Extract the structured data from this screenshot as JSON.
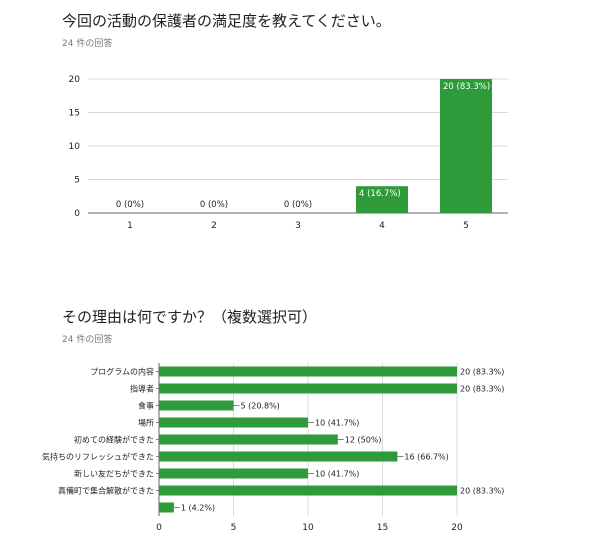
{
  "charts": [
    {
      "question": "今回の活動の保護者の満足度を教えてください。",
      "responses": "24 件の回答"
    },
    {
      "question": "その理由は何ですか？（複数選択可）",
      "responses": "24 件の回答"
    }
  ],
  "colors": {
    "bar": "#2e9a3a",
    "grid": "#d9d9d9",
    "axis": "#666666",
    "text": "#212121"
  },
  "chart_data": [
    {
      "type": "bar",
      "orientation": "vertical",
      "categories": [
        "1",
        "2",
        "3",
        "4",
        "5"
      ],
      "values": [
        0,
        0,
        0,
        4,
        20
      ],
      "data_labels": [
        "0 (0%)",
        "0 (0%)",
        "0 (0%)",
        "4 (16.7%)",
        "20 (83.3%)"
      ],
      "yticks": [
        "0",
        "5",
        "10",
        "15",
        "20"
      ],
      "ylim": [
        0,
        20
      ],
      "grid": true
    },
    {
      "type": "bar",
      "orientation": "horizontal",
      "categories": [
        "プログラムの内容",
        "指導者",
        "食事",
        "場所",
        "初めての経験ができた",
        "気持ちのリフレッシュができた",
        "新しい友だちができた",
        "真備町で集合解散ができた",
        ""
      ],
      "values": [
        20,
        20,
        5,
        10,
        12,
        16,
        10,
        20,
        1
      ],
      "data_labels": [
        "20 (83.3%)",
        "20 (83.3%)",
        "5 (20.8%)",
        "10 (41.7%)",
        "12 (50%)",
        "16 (66.7%)",
        "10 (41.7%)",
        "20 (83.3%)",
        "1 (4.2%)"
      ],
      "xticks": [
        "0",
        "5",
        "10",
        "15",
        "20"
      ],
      "xlim": [
        0,
        20
      ],
      "grid": true
    }
  ]
}
